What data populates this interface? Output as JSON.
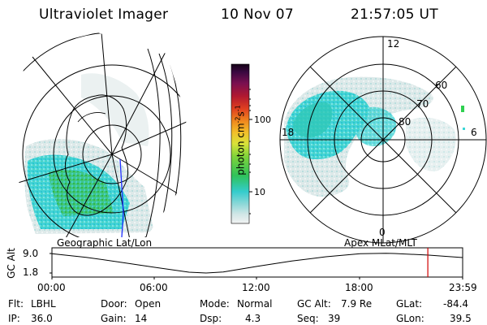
{
  "header": {
    "instrument": "Ultraviolet Imager",
    "date": "10 Nov 07",
    "time": "21:57:05 UT"
  },
  "colorbar": {
    "label": "photon cm",
    "label_exp1": "-2",
    "label_unit2": "s",
    "label_exp2": "-1",
    "ticks": [
      "100",
      "10"
    ]
  },
  "polar_plot": {
    "lat_labels": [
      "60",
      "70",
      "80"
    ],
    "mlt_labels": [
      "12",
      "18",
      "6",
      "0"
    ]
  },
  "panels": {
    "left_title": "Geographic Lat/Lon",
    "right_title": "Apex MLat/MLT"
  },
  "altitude_plot": {
    "ylabel": "GC Alt",
    "ytick_top": "9.0",
    "ytick_bottom": "1.8",
    "xticks": [
      "00:00",
      "06:00",
      "12:00",
      "18:00",
      "23:59"
    ]
  },
  "chart_data": {
    "type": "line",
    "title": "",
    "xlabel": "",
    "ylabel": "GC Alt",
    "x": [
      "00:00",
      "02:00",
      "04:00",
      "06:00",
      "08:00",
      "09:00",
      "10:00",
      "12:00",
      "14:00",
      "16:00",
      "18:00",
      "19:30",
      "20:00",
      "22:00",
      "23:59"
    ],
    "values": [
      8.9,
      7.6,
      5.8,
      3.9,
      2.1,
      1.8,
      2.2,
      4.3,
      6.2,
      7.8,
      8.9,
      9.1,
      9.0,
      8.4,
      7.5
    ],
    "ylim": [
      1.8,
      9.0
    ],
    "marker_time": "21:57"
  },
  "status": {
    "flt_label": "Flt:",
    "flt_value": "LBHL",
    "ip_label": "IP:",
    "ip_value": "36.0",
    "door_label": "Door:",
    "door_value": "Open",
    "gain_label": "Gain:",
    "gain_value": "14",
    "mode_label": "Mode:",
    "mode_value": "Normal",
    "dsp_label": "Dsp:",
    "dsp_value": "4.3",
    "gcalt_label": "GC Alt:",
    "gcalt_value": "7.9 Re",
    "seq_label": "Seq:",
    "seq_value": "39",
    "glat_label": "GLat:",
    "glat_value": "-84.4",
    "glon_label": "GLon:",
    "glon_value": "39.5"
  },
  "colors": {
    "axis": "#000000",
    "marker": "#d00000",
    "aurora_cyan": "#3ad6d6",
    "aurora_green": "#35c24a",
    "aurora_light": "#c6e3e3"
  }
}
